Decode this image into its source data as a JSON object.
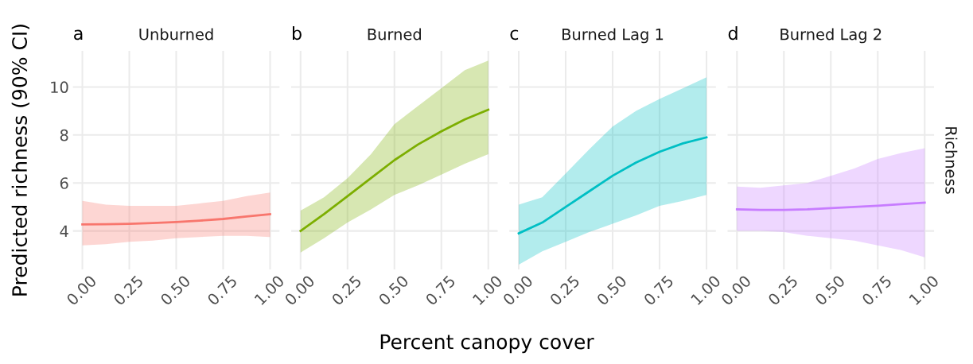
{
  "chart_data": [
    {
      "type": "line",
      "title": "Unburned",
      "xlabel": "Percent canopy cover",
      "ylabel": "Predicted richness (90% CI)",
      "annotations": [
        "a"
      ],
      "grid": true,
      "xlim": [
        -0.05,
        1.05
      ],
      "ylim": [
        2.4,
        11.5
      ],
      "xticks": [
        {
          "value": 0,
          "label": "0.00"
        },
        {
          "value": 0.25,
          "label": "0.25"
        },
        {
          "value": 0.5,
          "label": "0.50"
        },
        {
          "value": 0.75,
          "label": "0.75"
        },
        {
          "value": 1,
          "label": "1.00"
        }
      ],
      "yticks": [
        4,
        6,
        8,
        10
      ],
      "x": [
        0,
        0.125,
        0.25,
        0.375,
        0.5,
        0.625,
        0.75,
        0.875,
        1
      ],
      "series": [
        {
          "color": "#f8766d",
          "values": [
            4.27,
            4.28,
            4.3,
            4.33,
            4.37,
            4.43,
            4.5,
            4.6,
            4.7
          ],
          "lower": [
            3.4,
            3.45,
            3.55,
            3.6,
            3.7,
            3.75,
            3.8,
            3.8,
            3.75
          ],
          "upper": [
            5.25,
            5.1,
            5.05,
            5.05,
            5.05,
            5.15,
            5.25,
            5.45,
            5.6
          ]
        }
      ]
    },
    {
      "type": "line",
      "title": "Burned",
      "annotations": [
        "b"
      ],
      "grid": true,
      "tick_labels": "x",
      "xlim": [
        -0.05,
        1.05
      ],
      "ylim": [
        2.4,
        11.5
      ],
      "xticks": [
        {
          "value": 0,
          "label": "0.00"
        },
        {
          "value": 0.25,
          "label": "0.25"
        },
        {
          "value": 0.5,
          "label": "0.50"
        },
        {
          "value": 0.75,
          "label": "0.75"
        },
        {
          "value": 1,
          "label": "1.00"
        }
      ],
      "yticks": [
        4,
        6,
        8,
        10
      ],
      "x": [
        0,
        0.125,
        0.25,
        0.375,
        0.5,
        0.625,
        0.75,
        0.875,
        1
      ],
      "series": [
        {
          "color": "#7cae00",
          "values": [
            4.0,
            4.7,
            5.45,
            6.2,
            6.95,
            7.6,
            8.15,
            8.65,
            9.05
          ],
          "lower": [
            3.1,
            3.7,
            4.35,
            4.9,
            5.5,
            5.9,
            6.35,
            6.8,
            7.2
          ],
          "upper": [
            4.85,
            5.4,
            6.2,
            7.2,
            8.45,
            9.2,
            9.95,
            10.7,
            11.1
          ]
        }
      ]
    },
    {
      "type": "line",
      "title": "Burned Lag 1",
      "annotations": [
        "c"
      ],
      "grid": true,
      "tick_labels": "x",
      "xlim": [
        -0.05,
        1.05
      ],
      "ylim": [
        2.4,
        11.5
      ],
      "xticks": [
        {
          "value": 0,
          "label": "0.00"
        },
        {
          "value": 0.25,
          "label": "0.25"
        },
        {
          "value": 0.5,
          "label": "0.50"
        },
        {
          "value": 0.75,
          "label": "0.75"
        },
        {
          "value": 1,
          "label": "1.00"
        }
      ],
      "yticks": [
        4,
        6,
        8,
        10
      ],
      "x": [
        0,
        0.125,
        0.25,
        0.375,
        0.5,
        0.625,
        0.75,
        0.875,
        1
      ],
      "series": [
        {
          "color": "#00bfc4",
          "values": [
            3.9,
            4.35,
            5.0,
            5.65,
            6.3,
            6.85,
            7.3,
            7.65,
            7.9
          ],
          "lower": [
            2.6,
            3.15,
            3.55,
            3.95,
            4.3,
            4.65,
            5.05,
            5.25,
            5.5
          ],
          "upper": [
            5.1,
            5.4,
            6.4,
            7.4,
            8.35,
            9.0,
            9.5,
            9.95,
            10.4
          ]
        }
      ]
    },
    {
      "type": "line",
      "title": "Burned Lag 2",
      "annotations": [
        "d",
        "Richness"
      ],
      "grid": true,
      "tick_labels": "x",
      "xlim": [
        -0.05,
        1.05
      ],
      "ylim": [
        2.4,
        11.5
      ],
      "xticks": [
        {
          "value": 0,
          "label": "0.00"
        },
        {
          "value": 0.25,
          "label": "0.25"
        },
        {
          "value": 0.5,
          "label": "0.50"
        },
        {
          "value": 0.75,
          "label": "0.75"
        },
        {
          "value": 1,
          "label": "1.00"
        }
      ],
      "yticks": [
        4,
        6,
        8,
        10
      ],
      "x": [
        0,
        0.125,
        0.25,
        0.375,
        0.5,
        0.625,
        0.75,
        0.875,
        1
      ],
      "series": [
        {
          "color": "#c77cff",
          "values": [
            4.9,
            4.88,
            4.88,
            4.9,
            4.95,
            5.0,
            5.05,
            5.12,
            5.18
          ],
          "lower": [
            4.0,
            4.0,
            3.95,
            3.8,
            3.7,
            3.6,
            3.4,
            3.2,
            2.9
          ],
          "upper": [
            5.85,
            5.8,
            5.9,
            6.0,
            6.3,
            6.6,
            7.0,
            7.25,
            7.45
          ]
        }
      ]
    }
  ]
}
